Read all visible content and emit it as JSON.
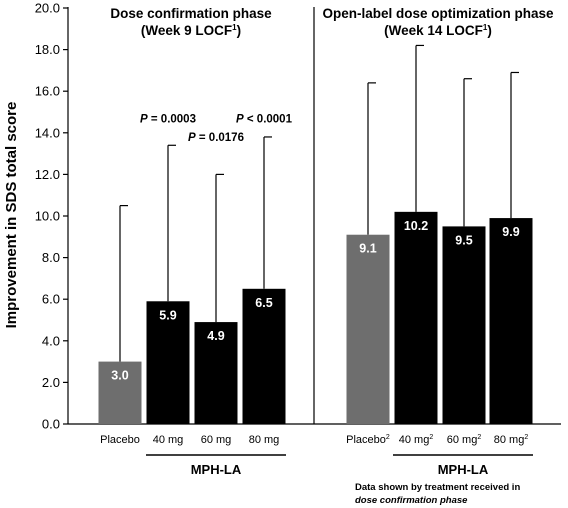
{
  "chart_data": {
    "type": "bar",
    "ylabel": "Improvement in SDS total score",
    "ylim": [
      0,
      20
    ],
    "yticks": [
      "0.0",
      "2.0",
      "4.0",
      "6.0",
      "8.0",
      "10.0",
      "12.0",
      "14.0",
      "16.0",
      "18.0",
      "20.0"
    ],
    "grid": false,
    "panels": [
      {
        "title_line1": "Dose confirmation phase",
        "title_line2": "(Week 9 LOCF",
        "title_sup": "1",
        "title_close": ")",
        "group_label": "MPH-LA",
        "categories": [
          {
            "label": "Placebo",
            "sup": "",
            "value": 3.0,
            "value_label": "3.0",
            "error_top": 10.5,
            "color": "#6e6e6e"
          },
          {
            "label": "40 mg",
            "sup": "",
            "value": 5.9,
            "value_label": "5.9",
            "error_top": 13.4,
            "color": "#000000"
          },
          {
            "label": "60 mg",
            "sup": "",
            "value": 4.9,
            "value_label": "4.9",
            "error_top": 12.0,
            "color": "#000000"
          },
          {
            "label": "80 mg",
            "sup": "",
            "value": 6.5,
            "value_label": "6.5",
            "error_top": 13.8,
            "color": "#000000"
          }
        ],
        "annotations": [
          {
            "italic": "P",
            "text": " = 0.0003",
            "cat_index": 1,
            "y_value": 14.4
          },
          {
            "italic": "P",
            "text": " = 0.0176",
            "cat_index": 2,
            "y_value": 13.5
          },
          {
            "italic": "P",
            "text": " < 0.0001",
            "cat_index": 3,
            "y_value": 14.4
          }
        ]
      },
      {
        "title_line1": "Open-label dose optimization phase",
        "title_line2": "(Week 14 LOCF",
        "title_sup": "1",
        "title_close": ")",
        "group_label": "MPH-LA",
        "categories": [
          {
            "label": "Placebo",
            "sup": "2",
            "value": 9.1,
            "value_label": "9.1",
            "error_top": 16.4,
            "color": "#6e6e6e"
          },
          {
            "label": "40 mg",
            "sup": "2",
            "value": 10.2,
            "value_label": "10.2",
            "error_top": 18.2,
            "color": "#000000"
          },
          {
            "label": "60 mg",
            "sup": "2",
            "value": 9.5,
            "value_label": "9.5",
            "error_top": 16.6,
            "color": "#000000"
          },
          {
            "label": "80 mg",
            "sup": "2",
            "value": 9.9,
            "value_label": "9.9",
            "error_top": 16.9,
            "color": "#000000"
          }
        ],
        "annotations": [],
        "note_line1": "Data shown by treatment received in",
        "note_line2": "dose confirmation phase"
      }
    ]
  }
}
